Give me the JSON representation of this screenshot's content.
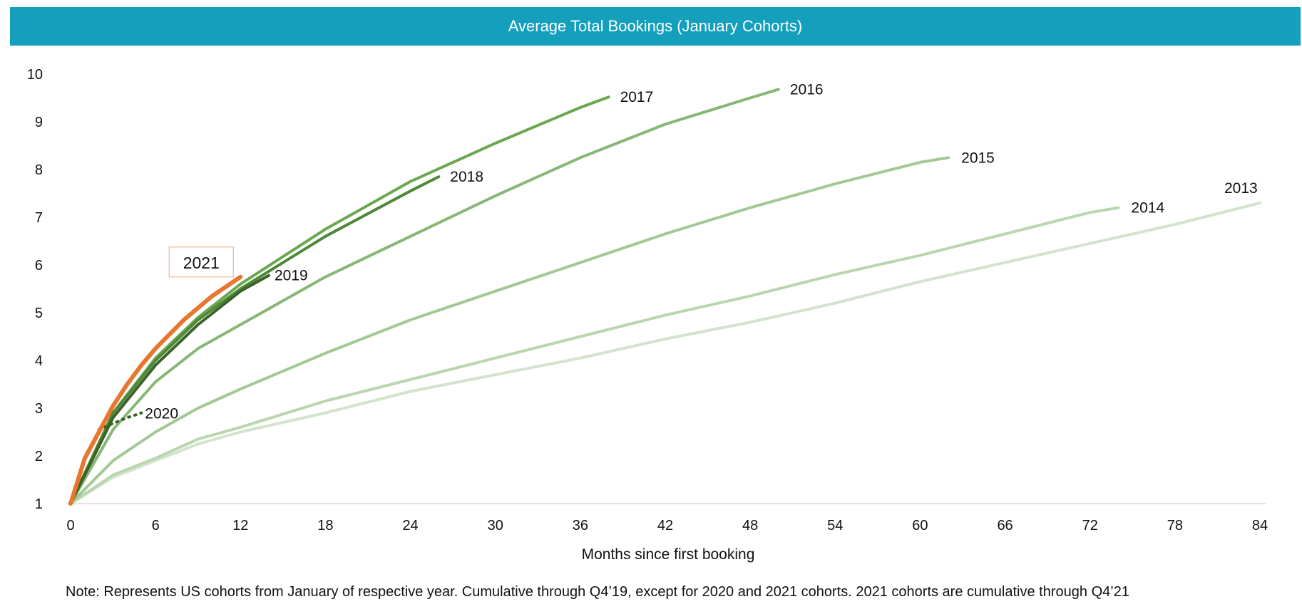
{
  "chart_data": {
    "type": "line",
    "title": "Average Total Bookings (January Cohorts)",
    "xlabel": "Months since first booking",
    "ylabel": "",
    "xlim": [
      0,
      84
    ],
    "ylim": [
      1,
      10
    ],
    "xticks": [
      0,
      6,
      12,
      18,
      24,
      30,
      36,
      42,
      48,
      54,
      60,
      66,
      72,
      78,
      84
    ],
    "yticks": [
      1,
      2,
      3,
      4,
      5,
      6,
      7,
      8,
      9,
      10
    ],
    "grid": false,
    "series": [
      {
        "name": "2013",
        "color": "#d3e3cd",
        "style": "solid",
        "label_box": false,
        "x": [
          0,
          3,
          6,
          9,
          12,
          18,
          24,
          30,
          36,
          42,
          48,
          54,
          60,
          66,
          72,
          78,
          84
        ],
        "y": [
          1.0,
          1.55,
          1.9,
          2.25,
          2.5,
          2.9,
          3.35,
          3.7,
          4.05,
          4.45,
          4.8,
          5.2,
          5.65,
          6.05,
          6.45,
          6.85,
          7.3
        ]
      },
      {
        "name": "2014",
        "color": "#b9d6ae",
        "style": "solid",
        "label_box": false,
        "x": [
          0,
          3,
          6,
          9,
          12,
          18,
          24,
          30,
          36,
          42,
          48,
          54,
          60,
          66,
          72,
          74
        ],
        "y": [
          1.0,
          1.6,
          1.95,
          2.35,
          2.6,
          3.15,
          3.6,
          4.05,
          4.5,
          4.95,
          5.35,
          5.8,
          6.2,
          6.65,
          7.1,
          7.2
        ]
      },
      {
        "name": "2015",
        "color": "#a2c993",
        "style": "solid",
        "label_box": false,
        "x": [
          0,
          3,
          6,
          9,
          12,
          18,
          24,
          30,
          36,
          42,
          48,
          54,
          60,
          62
        ],
        "y": [
          1.0,
          1.9,
          2.5,
          3.0,
          3.4,
          4.15,
          4.85,
          5.45,
          6.05,
          6.65,
          7.2,
          7.7,
          8.15,
          8.25
        ]
      },
      {
        "name": "2016",
        "color": "#86b775",
        "style": "solid",
        "label_box": false,
        "x": [
          0,
          3,
          6,
          9,
          12,
          18,
          24,
          30,
          36,
          42,
          48,
          50
        ],
        "y": [
          1.0,
          2.55,
          3.55,
          4.25,
          4.75,
          5.75,
          6.6,
          7.45,
          8.25,
          8.95,
          9.5,
          9.68
        ]
      },
      {
        "name": "2017",
        "color": "#6aa84f",
        "style": "solid",
        "label_box": false,
        "x": [
          0,
          3,
          6,
          9,
          12,
          18,
          24,
          30,
          36,
          38
        ],
        "y": [
          1.0,
          2.9,
          4.05,
          4.9,
          5.6,
          6.75,
          7.75,
          8.55,
          9.3,
          9.52
        ]
      },
      {
        "name": "2018",
        "color": "#4e8838",
        "style": "solid",
        "label_box": false,
        "x": [
          0,
          3,
          6,
          9,
          12,
          18,
          24,
          26
        ],
        "y": [
          1.0,
          2.9,
          4.0,
          4.85,
          5.5,
          6.6,
          7.55,
          7.85
        ]
      },
      {
        "name": "2019",
        "color": "#3a6328",
        "style": "solid",
        "label_box": false,
        "x": [
          0,
          3,
          6,
          9,
          12,
          14
        ],
        "y": [
          1.0,
          2.8,
          3.9,
          4.75,
          5.45,
          5.78
        ]
      },
      {
        "name": "2020",
        "color": "#3a6328",
        "style": "dotted",
        "label_box": false,
        "x": [
          2,
          3,
          4,
          5
        ],
        "y": [
          2.55,
          2.68,
          2.8,
          2.9
        ]
      },
      {
        "name": "2021",
        "color": "#e8762e",
        "style": "solid",
        "label_box": true,
        "x": [
          0,
          1,
          2,
          3,
          4,
          5,
          6,
          7,
          8,
          9,
          10,
          11,
          12
        ],
        "y": [
          1.0,
          1.95,
          2.5,
          3.05,
          3.5,
          3.9,
          4.25,
          4.55,
          4.85,
          5.1,
          5.35,
          5.55,
          5.75
        ]
      }
    ],
    "note": "Note: Represents US cohorts from January of respective year. Cumulative through Q4’19, except for 2020 and 2021 cohorts. 2021 cohorts are cumulative through Q4’21"
  }
}
